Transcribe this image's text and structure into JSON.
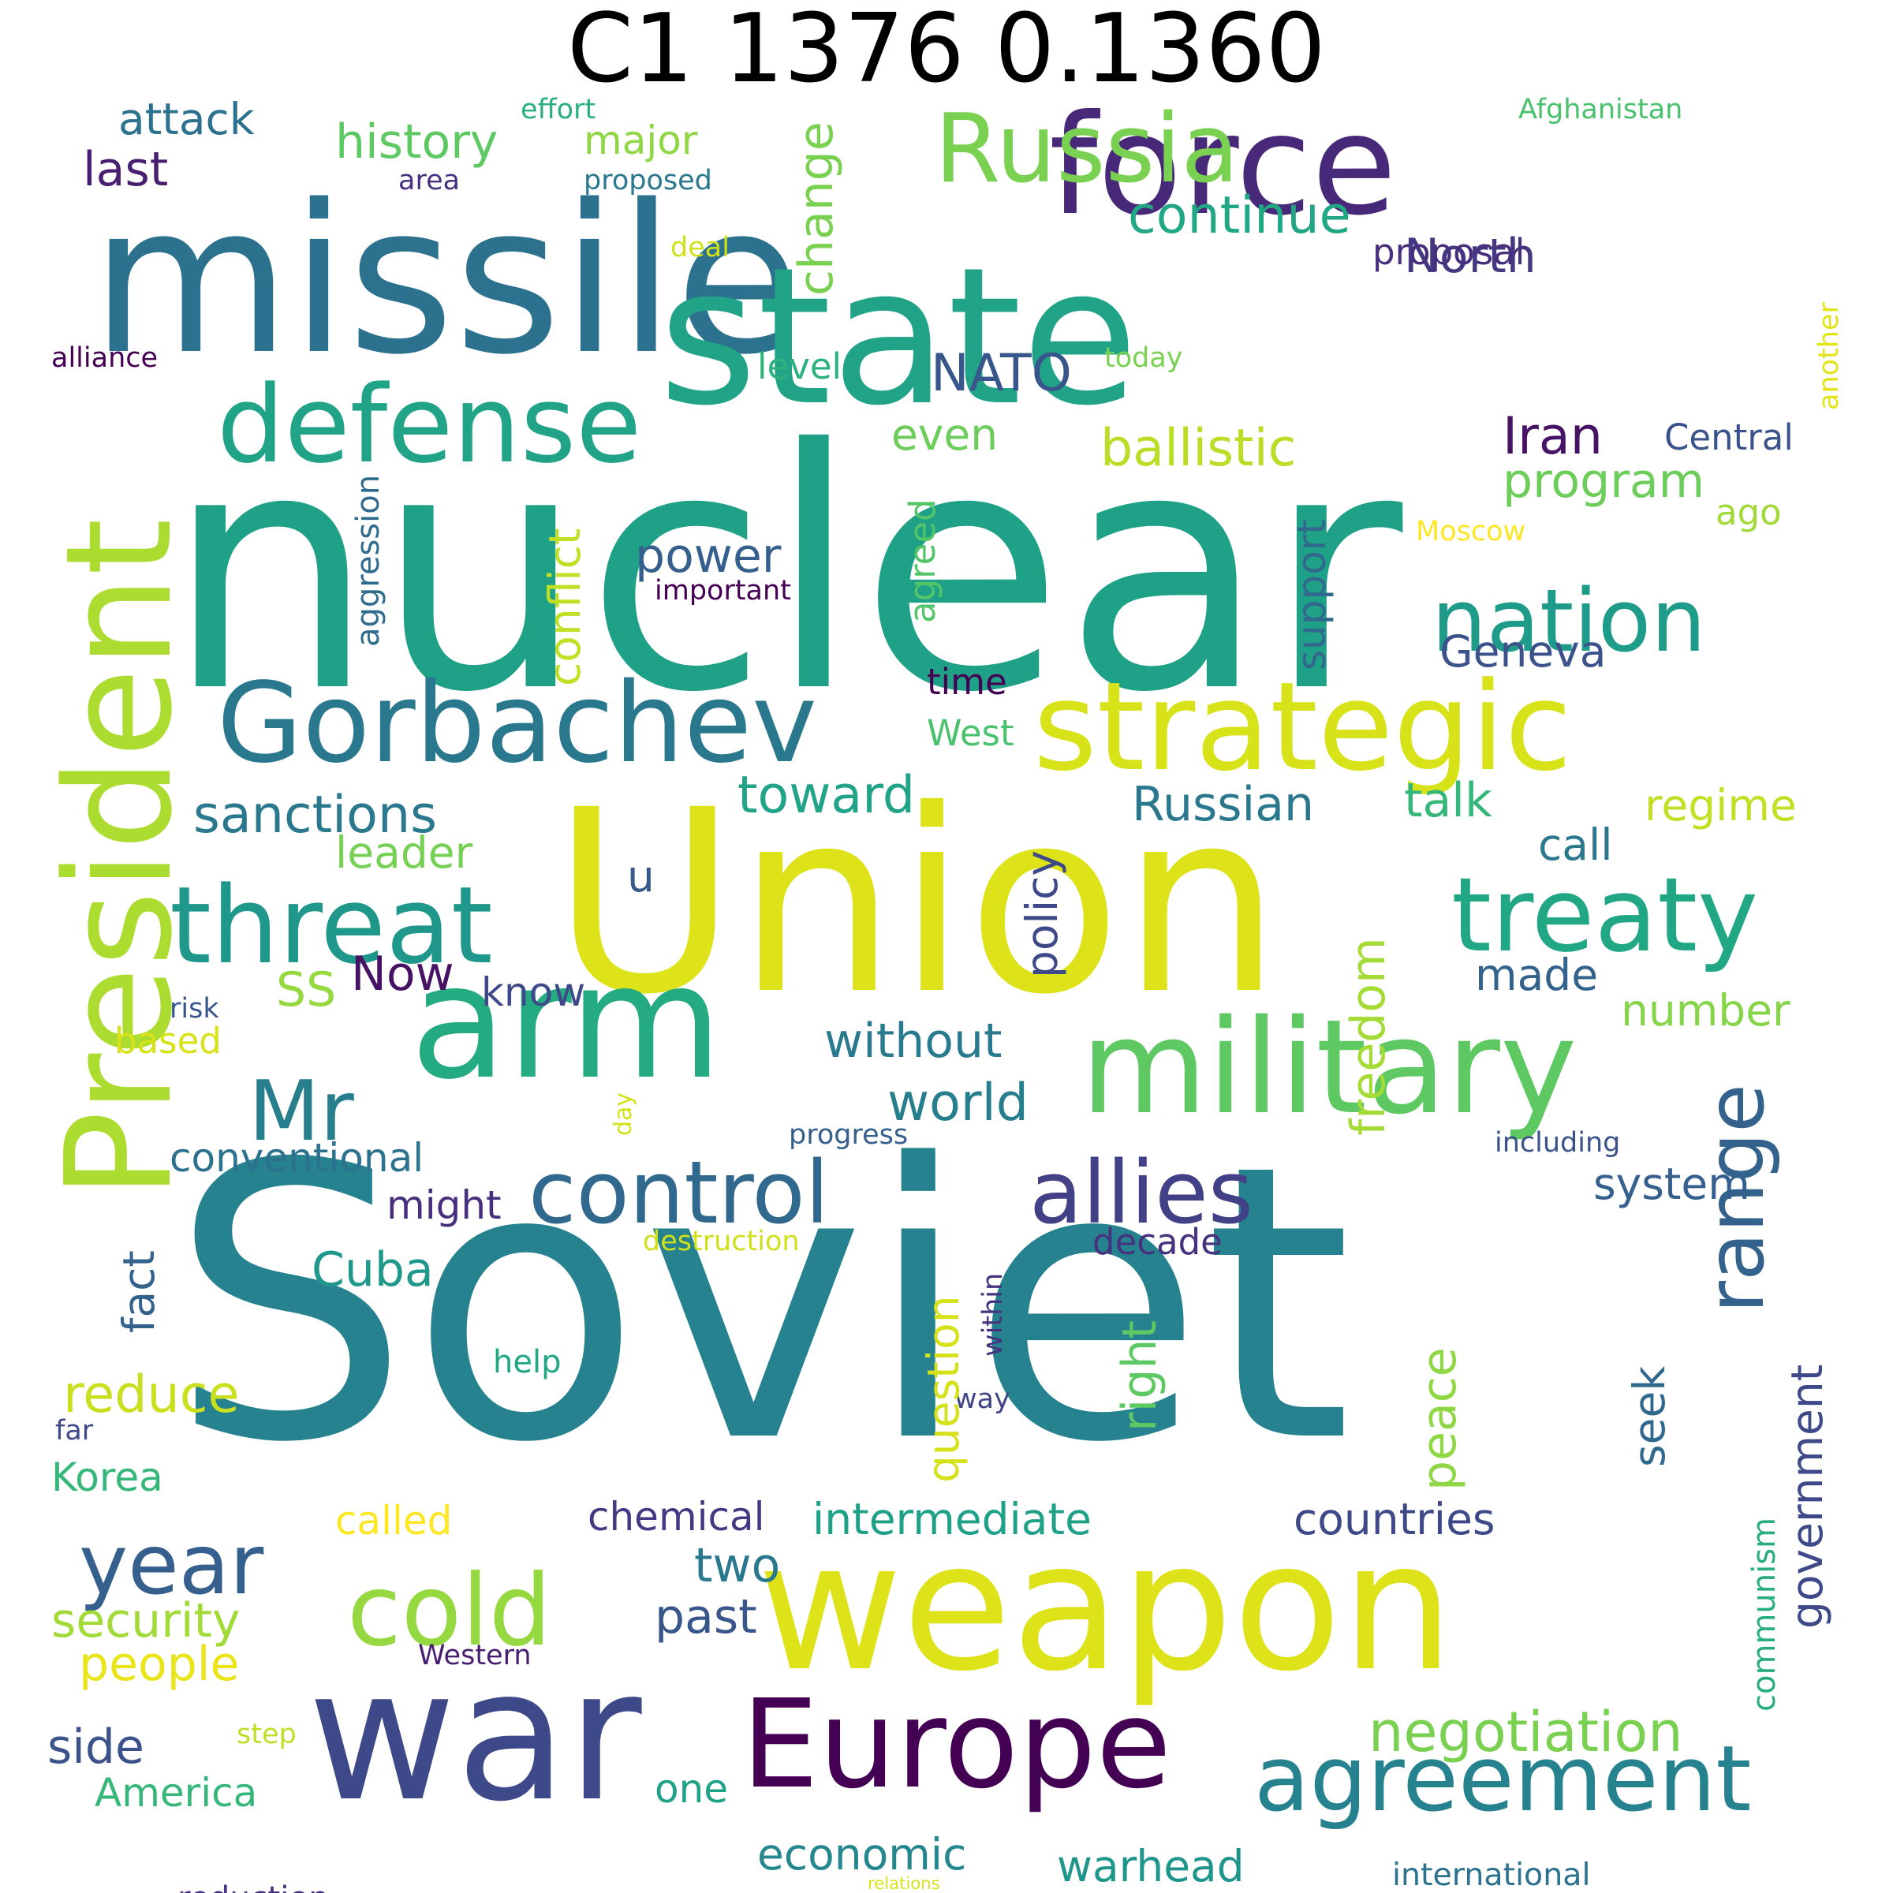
{
  "title": "C1 1376 0.1360",
  "words": [
    {
      "text": "Soviet",
      "color": "#26828e"
    },
    {
      "text": "nuclear",
      "color": "#1fa187"
    },
    {
      "text": "Union",
      "color": "#dde318"
    },
    {
      "text": "missile",
      "color": "#2c728e"
    },
    {
      "text": "state",
      "color": "#20a386"
    },
    {
      "text": "weapon",
      "color": "#dde318"
    },
    {
      "text": "war",
      "color": "#3e4989"
    },
    {
      "text": "arm",
      "color": "#25ab82"
    },
    {
      "text": "President",
      "color": "#addc30"
    },
    {
      "text": "force",
      "color": "#482878"
    },
    {
      "text": "military",
      "color": "#5ec962"
    },
    {
      "text": "strategic",
      "color": "#d8e219"
    },
    {
      "text": "Europe",
      "color": "#440154"
    },
    {
      "text": "Gorbachev",
      "color": "#2a788e"
    },
    {
      "text": "defense",
      "color": "#20a386"
    },
    {
      "text": "threat",
      "color": "#1f988b"
    },
    {
      "text": "treaty",
      "color": "#22a785"
    },
    {
      "text": "control",
      "color": "#31688e"
    },
    {
      "text": "allies",
      "color": "#424086"
    },
    {
      "text": "cold",
      "color": "#95d840"
    },
    {
      "text": "Russia",
      "color": "#7ad151"
    },
    {
      "text": "agreement",
      "color": "#26828e"
    },
    {
      "text": "reduction",
      "color": "#46327e"
    },
    {
      "text": "nation",
      "color": "#1e9c89"
    },
    {
      "text": "year",
      "color": "#355f8d"
    },
    {
      "text": "Mr",
      "color": "#277f8e"
    },
    {
      "text": "range",
      "color": "#33638d"
    },
    {
      "text": "negotiation",
      "color": "#7ad151"
    },
    {
      "text": "international",
      "color": "#2c728e"
    },
    {
      "text": "ballistic",
      "color": "#bade28"
    },
    {
      "text": "sanctions",
      "color": "#2a788e"
    },
    {
      "text": "continue",
      "color": "#22a785"
    },
    {
      "text": "North",
      "color": "#453882"
    },
    {
      "text": "NATO",
      "color": "#39568c"
    },
    {
      "text": "Iran",
      "color": "#471365"
    },
    {
      "text": "program",
      "color": "#6ccd5a"
    },
    {
      "text": "power",
      "color": "#355f8d"
    },
    {
      "text": "Geneva",
      "color": "#3b528b"
    },
    {
      "text": "toward",
      "color": "#20a386"
    },
    {
      "text": "Russian",
      "color": "#2a788e"
    },
    {
      "text": "talk",
      "color": "#35b779"
    },
    {
      "text": "regime",
      "color": "#c2df23"
    },
    {
      "text": "call",
      "color": "#2a788e"
    },
    {
      "text": "made",
      "color": "#33638d"
    },
    {
      "text": "number",
      "color": "#86d549"
    },
    {
      "text": "without",
      "color": "#297a8e"
    },
    {
      "text": "world",
      "color": "#277f8e"
    },
    {
      "text": "system",
      "color": "#355f8d"
    },
    {
      "text": "conventional",
      "color": "#2c728e"
    },
    {
      "text": "might",
      "color": "#46307e"
    },
    {
      "text": "decade",
      "color": "#46327e"
    },
    {
      "text": "Cuba",
      "color": "#1f988b"
    },
    {
      "text": "reduce",
      "color": "#c8e020"
    },
    {
      "text": "Korea",
      "color": "#35b779"
    },
    {
      "text": "intermediate",
      "color": "#1fa187"
    },
    {
      "text": "countries",
      "color": "#3e4989"
    },
    {
      "text": "security",
      "color": "#a2da37"
    },
    {
      "text": "two",
      "color": "#2a788e"
    },
    {
      "text": "past",
      "color": "#39568c"
    },
    {
      "text": "chemical",
      "color": "#443983"
    },
    {
      "text": "people",
      "color": "#eae51a"
    },
    {
      "text": "side",
      "color": "#3b528b"
    },
    {
      "text": "America",
      "color": "#35b779"
    },
    {
      "text": "one",
      "color": "#1fa187"
    },
    {
      "text": "economic",
      "color": "#24878e"
    },
    {
      "text": "warhead",
      "color": "#1f968b"
    },
    {
      "text": "Now",
      "color": "#471164"
    },
    {
      "text": "SS",
      "color": "#95d840"
    },
    {
      "text": "know",
      "color": "#3e4989"
    },
    {
      "text": "u",
      "color": "#38598c"
    },
    {
      "text": "leader",
      "color": "#75d054"
    },
    {
      "text": "time",
      "color": "#440154"
    },
    {
      "text": "West",
      "color": "#4ac16d"
    },
    {
      "text": "attack",
      "color": "#2c728e"
    },
    {
      "text": "history",
      "color": "#5ec962"
    },
    {
      "text": "major",
      "color": "#8fd744"
    },
    {
      "text": "last",
      "color": "#481f70"
    },
    {
      "text": "level",
      "color": "#2db27d"
    },
    {
      "text": "even",
      "color": "#6ccd5a"
    },
    {
      "text": "proposal",
      "color": "#46307e"
    },
    {
      "text": "Central",
      "color": "#3b528b"
    },
    {
      "text": "ago",
      "color": "#a0da39"
    },
    {
      "text": "based",
      "color": "#d8e219"
    },
    {
      "text": "called",
      "color": "#fde725"
    },
    {
      "text": "effort",
      "color": "#29af7f"
    },
    {
      "text": "area",
      "color": "#46327e"
    },
    {
      "text": "proposed",
      "color": "#2a788e"
    },
    {
      "text": "deal",
      "color": "#d0e11c"
    },
    {
      "text": "alliance",
      "color": "#440154"
    },
    {
      "text": "today",
      "color": "#7ad151"
    },
    {
      "text": "Afghanistan",
      "color": "#4ac16d"
    },
    {
      "text": "Moscow",
      "color": "#fde725"
    },
    {
      "text": "important",
      "color": "#440154"
    },
    {
      "text": "risk",
      "color": "#39568c"
    },
    {
      "text": "progress",
      "color": "#355f8d"
    },
    {
      "text": "including",
      "color": "#3b528b"
    },
    {
      "text": "destruction",
      "color": "#d0e11c"
    },
    {
      "text": "help",
      "color": "#22a785"
    },
    {
      "text": "far",
      "color": "#3e4989"
    },
    {
      "text": "way",
      "color": "#404588"
    },
    {
      "text": "step",
      "color": "#bddf26"
    },
    {
      "text": "Western",
      "color": "#481f70"
    },
    {
      "text": "relations",
      "color": "#d8e219"
    },
    {
      "text": "change",
      "color": "#7ad151"
    },
    {
      "text": "conflict",
      "color": "#c0df25"
    },
    {
      "text": "agreed",
      "color": "#52c569"
    },
    {
      "text": "aggression",
      "color": "#2f6c8e"
    },
    {
      "text": "support",
      "color": "#31688e"
    },
    {
      "text": "policy",
      "color": "#3e4989"
    },
    {
      "text": "freedom",
      "color": "#a5db36"
    },
    {
      "text": "fact",
      "color": "#33638d"
    },
    {
      "text": "right",
      "color": "#5ec962"
    },
    {
      "text": "question",
      "color": "#d5e21a"
    },
    {
      "text": "within",
      "color": "#46337f"
    },
    {
      "text": "peace",
      "color": "#8fd744"
    },
    {
      "text": "seek",
      "color": "#31688e"
    },
    {
      "text": "government",
      "color": "#3e4989"
    },
    {
      "text": "communism",
      "color": "#27ad81"
    },
    {
      "text": "another",
      "color": "#e2e418"
    },
    {
      "text": "day",
      "color": "#d2e21b"
    }
  ]
}
